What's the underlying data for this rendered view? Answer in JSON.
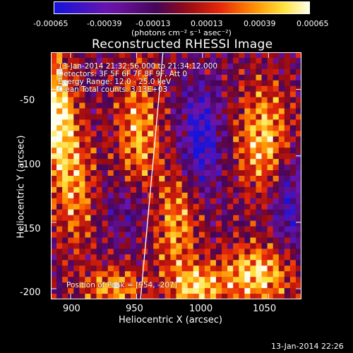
{
  "colorbar": {
    "ticks": [
      "-0.00065",
      "-0.00039",
      "-0.00013",
      "0.00013",
      "0.00039",
      "0.00065"
    ],
    "unit": "(photons cm⁻² s⁻¹ asec⁻²)"
  },
  "title": "Reconstructed RHESSI Image",
  "annotations": {
    "time": "13-Jan-2014 21:32:56.000 to 21:34:12.000",
    "detectors": "Detectors: 3F 5F 6F 7F 8F 9F, Att 0",
    "energy": "Energy Range: 12.0 - 25.0 keV",
    "clean": "Clean     Total counts: 3.13E+03",
    "peak": "Position of Peak = [954, -207]"
  },
  "axes": {
    "xlabel": "Heliocentric X (arcsec)",
    "ylabel": "Heliocentric Y (arcsec)",
    "xticks": [
      "900",
      "950",
      "1000",
      "1050"
    ],
    "yticks": [
      "-50",
      "-100",
      "-150",
      "-200"
    ]
  },
  "footer_date": "13-Jan-2014 22:26",
  "colors": {
    "frame": "#ffffff",
    "background": "#000000"
  },
  "chart_data": {
    "type": "heatmap",
    "colormap": "blue-purple-red-yellow-white",
    "xlabel": "Heliocentric X (arcsec)",
    "ylabel": "Heliocentric Y (arcsec)",
    "title": "Reconstructed RHESSI Image",
    "x_range": [
      885,
      1075
    ],
    "y_range": [
      -208,
      -22
    ],
    "x_ticks": [
      900,
      950,
      1000,
      1050
    ],
    "y_ticks": [
      -50,
      -100,
      -150,
      -200
    ],
    "color_range": [
      -0.00065,
      0.00065
    ],
    "peak_position": [
      954,
      -207
    ],
    "limb_line": [
      [
        953,
        -208
      ],
      [
        970,
        -22
      ]
    ]
  }
}
